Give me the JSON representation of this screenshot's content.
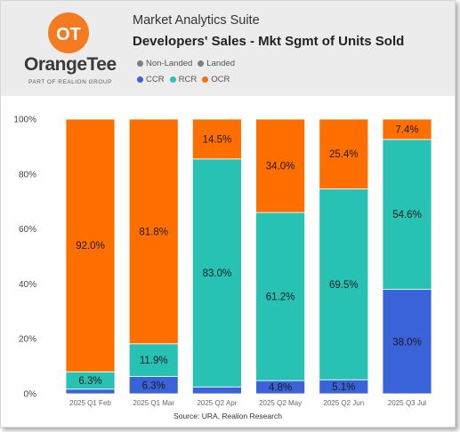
{
  "header": {
    "logo_text": "OrangeTee",
    "logo_tagline": "PART OF REALION GROUP",
    "app_title": "Market Analytics Suite",
    "chart_title": "Developers' Sales - Mkt Sgmt of Units Sold"
  },
  "legends": {
    "type": [
      {
        "label": "Non-Landed",
        "color": "#7f7f7f"
      },
      {
        "label": "Landed",
        "color": "#7f7f7f"
      }
    ],
    "segment": [
      {
        "label": "CCR",
        "color": "#3b63d9"
      },
      {
        "label": "RCR",
        "color": "#28c2b5"
      },
      {
        "label": "OCR",
        "color": "#ff6f00"
      }
    ]
  },
  "colors": {
    "CCR": "#3b63d9",
    "RCR": "#28c2b5",
    "OCR": "#ff6f00",
    "bar_edge": "#ffffff"
  },
  "source": "Source: URA, Realion Research",
  "chart_data": {
    "type": "bar",
    "stacked": true,
    "categories": [
      "2025 Q1 Feb",
      "2025 Q1 Mar",
      "2025 Q2 Apr",
      "2025 Q2 May",
      "2025 Q2 Jun",
      "2025 Q3 Jul"
    ],
    "series": [
      {
        "name": "CCR",
        "values": [
          1.7,
          6.3,
          2.5,
          4.8,
          5.1,
          38.0
        ],
        "labels": [
          "",
          "6.3%",
          "",
          "4.8%",
          "5.1%",
          "38.0%"
        ]
      },
      {
        "name": "RCR",
        "values": [
          6.3,
          11.9,
          83.0,
          61.2,
          69.5,
          54.6
        ],
        "labels": [
          "6.3%",
          "11.9%",
          "83.0%",
          "61.2%",
          "69.5%",
          "54.6%"
        ]
      },
      {
        "name": "OCR",
        "values": [
          92.0,
          81.8,
          14.5,
          34.0,
          25.4,
          7.4
        ],
        "labels": [
          "92.0%",
          "81.8%",
          "14.5%",
          "34.0%",
          "25.4%",
          "7.4%"
        ]
      }
    ],
    "yticks": [
      "0%",
      "20%",
      "40%",
      "60%",
      "80%",
      "100%"
    ],
    "ylim": [
      0,
      100
    ],
    "grid": false
  }
}
